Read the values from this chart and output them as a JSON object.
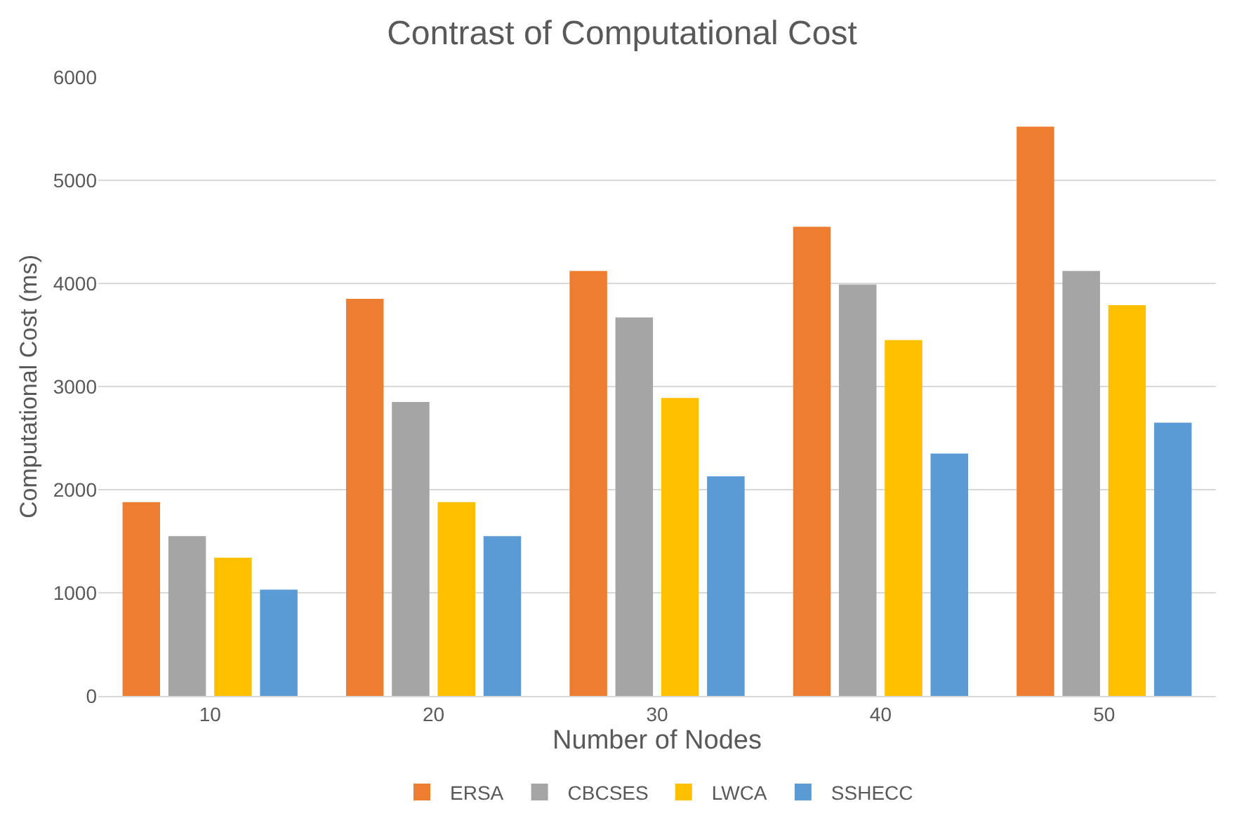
{
  "chart_data": {
    "type": "bar",
    "title": "Contrast of Computational Cost",
    "xlabel": "Number of Nodes",
    "ylabel": "Computational Cost (ms)",
    "categories": [
      "10",
      "20",
      "30",
      "40",
      "50"
    ],
    "series": [
      {
        "name": "ERSA",
        "color": "#ed7d31",
        "values": [
          1880,
          3850,
          4120,
          4550,
          5520
        ]
      },
      {
        "name": "CBCSES",
        "color": "#a5a5a5",
        "values": [
          1550,
          2850,
          3670,
          3990,
          4120
        ]
      },
      {
        "name": "LWCA",
        "color": "#ffc000",
        "values": [
          1340,
          1880,
          2890,
          3450,
          3790
        ]
      },
      {
        "name": "SSHECC",
        "color": "#5b9bd5",
        "values": [
          1030,
          1550,
          2130,
          2350,
          2650
        ]
      }
    ],
    "ylim": [
      0,
      6000
    ],
    "yticks": [
      0,
      1000,
      2000,
      3000,
      4000,
      5000,
      6000
    ],
    "grid": "y",
    "legend": "bottom"
  }
}
